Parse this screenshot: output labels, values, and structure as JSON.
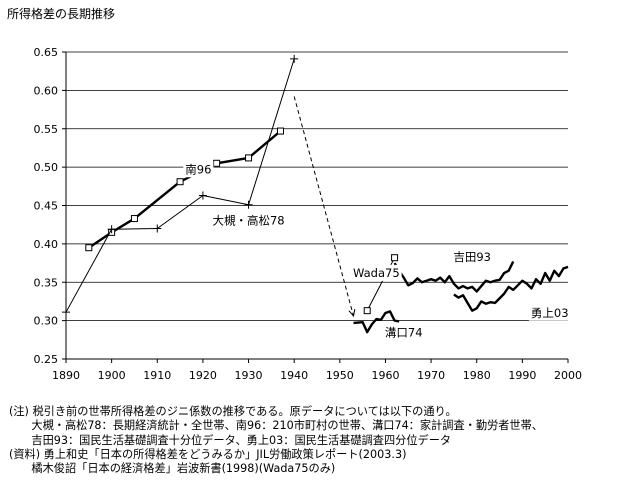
{
  "page_title": "所得格差の長期推移",
  "notes": [
    "(注) 税引き前の世帯所得格差のジニ係数の推移である。原データについては以下の通り。",
    "　　大槻・高松78：長期経済統計・全世帯、南96：210市町村の世帯、溝口74：家計調査・勤労者世帯、",
    "　　吉田93：国民生活基礎調査十分位データ、勇上03：国民生活基礎調査四分位データ",
    "(資料) 勇上和史「日本の所得格差をどうみるか」JIL労働政策レポート(2003.3)",
    "　　橘木俊詔「日本の経済格差」岩波新書(1998)(Wada75のみ)"
  ],
  "chart_data": {
    "type": "line",
    "xlim": [
      1890,
      2000
    ],
    "ylim": [
      0.25,
      0.65
    ],
    "x_ticks": [
      "1890",
      "1900",
      "1910",
      "1920",
      "1930",
      "1940",
      "1950",
      "1960",
      "1970",
      "1980",
      "1990",
      "2000"
    ],
    "y_ticks": [
      "0.25",
      "0.30",
      "0.35",
      "0.40",
      "0.45",
      "0.50",
      "0.55",
      "0.60",
      "0.65"
    ],
    "grid": "horizontal",
    "legend": "none",
    "series": [
      {
        "name": "南96",
        "style": "thick-square",
        "x": [
          1895,
          1900,
          1905,
          1915,
          1923,
          1930,
          1937
        ],
        "y": [
          0.395,
          0.415,
          0.433,
          0.481,
          0.505,
          0.512,
          0.547
        ]
      },
      {
        "name": "大槻・高松78",
        "style": "thin-plus",
        "x": [
          1890,
          1900,
          1910,
          1920,
          1930,
          1940
        ],
        "y": [
          0.311,
          0.419,
          0.42,
          0.463,
          0.451,
          0.641
        ]
      },
      {
        "name": "溝口74",
        "style": "thick",
        "x": [
          1953,
          1955,
          1956,
          1957,
          1958,
          1959,
          1960,
          1961,
          1962,
          1963
        ],
        "y": [
          0.297,
          0.298,
          0.285,
          0.295,
          0.302,
          0.301,
          0.31,
          0.312,
          0.3,
          0.299
        ]
      },
      {
        "name": "Wada75",
        "style": "thin-square",
        "x": [
          1956,
          1962
        ],
        "y": [
          0.313,
          0.382
        ]
      },
      {
        "name": "吉田93",
        "style": "thick",
        "x": [
          1962,
          1963,
          1964,
          1965,
          1966,
          1967,
          1968,
          1969,
          1970,
          1971,
          1972,
          1973,
          1974,
          1975,
          1976,
          1977,
          1978,
          1979,
          1980,
          1981,
          1982,
          1983,
          1984,
          1985,
          1986,
          1987,
          1988
        ],
        "y": [
          0.375,
          0.365,
          0.356,
          0.346,
          0.349,
          0.355,
          0.35,
          0.352,
          0.354,
          0.352,
          0.356,
          0.35,
          0.358,
          0.348,
          0.342,
          0.345,
          0.342,
          0.344,
          0.338,
          0.345,
          0.352,
          0.35,
          0.352,
          0.353,
          0.362,
          0.365,
          0.377
        ]
      },
      {
        "name": "勇上03",
        "style": "thick",
        "x": [
          1975,
          1976,
          1977,
          1978,
          1979,
          1980,
          1981,
          1982,
          1983,
          1984,
          1985,
          1986,
          1987,
          1988,
          1989,
          1990,
          1991,
          1992,
          1993,
          1994,
          1995,
          1996,
          1997,
          1998,
          1999,
          2000
        ],
        "y": [
          0.334,
          0.33,
          0.333,
          0.323,
          0.313,
          0.316,
          0.325,
          0.322,
          0.324,
          0.323,
          0.329,
          0.335,
          0.344,
          0.34,
          0.346,
          0.352,
          0.348,
          0.342,
          0.354,
          0.348,
          0.362,
          0.352,
          0.365,
          0.358,
          0.368,
          0.37
        ]
      }
    ],
    "annotations": [
      {
        "text": "南96",
        "x": 1919,
        "y": 0.492
      },
      {
        "text": "大槻・高松78",
        "x": 1930,
        "y": 0.425
      },
      {
        "text": "Wada75",
        "x": 1958,
        "y": 0.357
      },
      {
        "text": "吉田93",
        "x": 1979,
        "y": 0.378
      },
      {
        "text": "勇上03",
        "x": 1996,
        "y": 0.305
      },
      {
        "text": "溝口74",
        "x": 1964,
        "y": 0.279
      }
    ],
    "arrow": {
      "from_x": 1940,
      "from_y": 0.592,
      "to_x": 1953,
      "to_y": 0.306,
      "style": "dashed"
    }
  }
}
